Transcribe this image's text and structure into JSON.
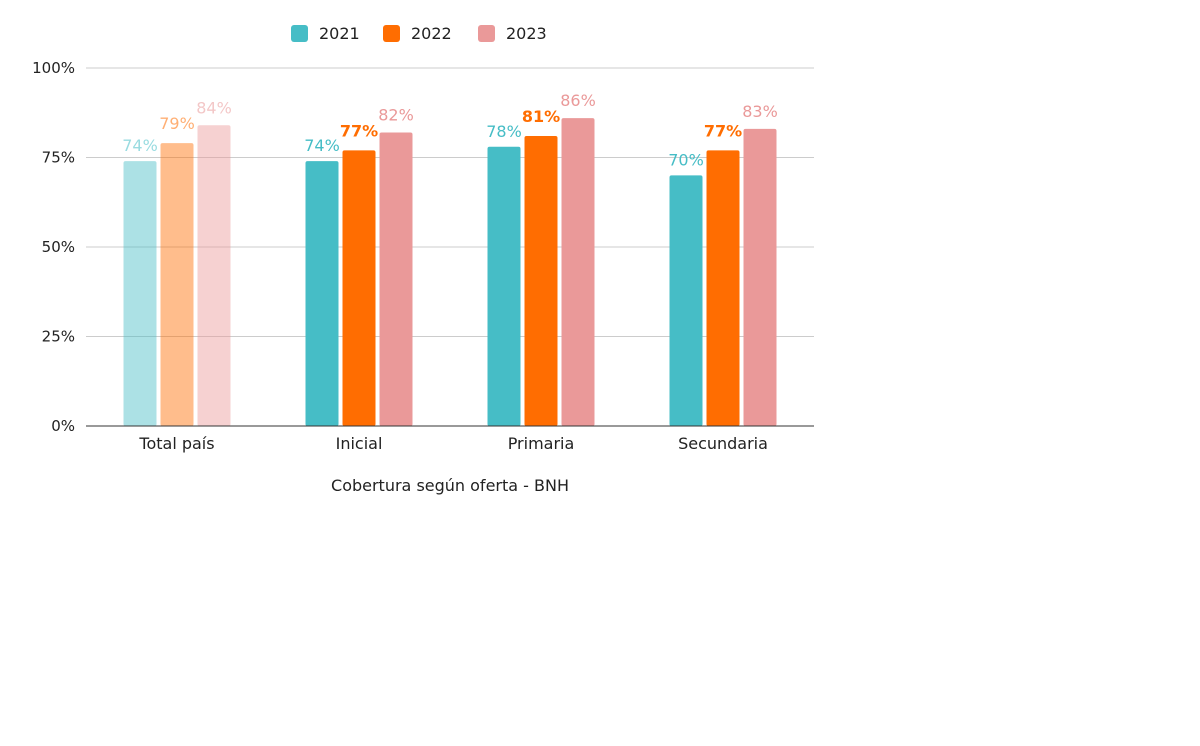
{
  "chart_data": {
    "type": "bar",
    "categories": [
      "Total país",
      "Inicial",
      "Primaria",
      "Secundaria"
    ],
    "series": [
      {
        "name": "2021",
        "color": "#46BDC6",
        "values": [
          74,
          74,
          78,
          70
        ]
      },
      {
        "name": "2022",
        "color": "#FF6D01",
        "values": [
          79,
          77,
          81,
          77
        ]
      },
      {
        "name": "2023",
        "color": "#EA9999",
        "values": [
          84,
          82,
          86,
          83
        ]
      }
    ],
    "highlighted_categories": [
      "Inicial",
      "Primaria",
      "Secundaria"
    ],
    "faded_categories": [
      "Total país"
    ],
    "title": "",
    "xlabel": "Cobertura según oferta - BNH",
    "ylabel": "",
    "ylim": [
      0,
      100
    ],
    "yticks": [
      0,
      25,
      50,
      75,
      100
    ],
    "ytick_labels": [
      "0%",
      "25%",
      "50%",
      "75%",
      "100%"
    ],
    "value_suffix": "%",
    "grid": true,
    "legend_position": "top"
  }
}
